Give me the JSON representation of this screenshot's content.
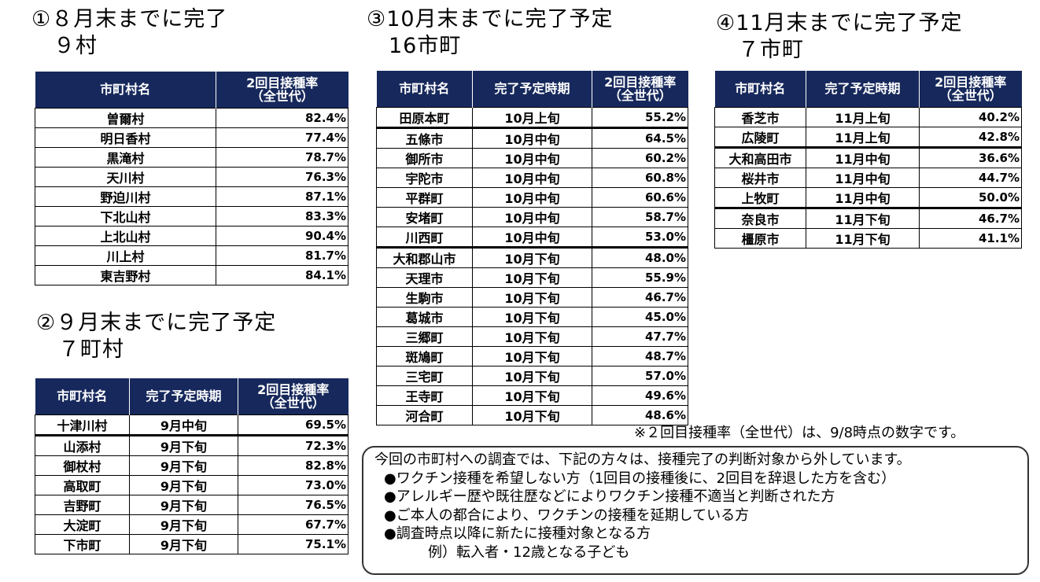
{
  "s1": {
    "title": "①８月末までに完了",
    "sub": "９村",
    "headers": [
      "市町村名",
      "2回目接種率\n（全世代）"
    ],
    "rows": [
      [
        "曽爾村",
        "82.4%"
      ],
      [
        "明日香村",
        "77.4%"
      ],
      [
        "黒滝村",
        "78.7%"
      ],
      [
        "天川村",
        "76.3%"
      ],
      [
        "野迫川村",
        "87.1%"
      ],
      [
        "下北山村",
        "83.3%"
      ],
      [
        "上北山村",
        "90.4%"
      ],
      [
        "川上村",
        "81.7%"
      ],
      [
        "東吉野村",
        "84.1%"
      ]
    ]
  },
  "s2": {
    "title": "②９月末までに完了予定",
    "sub": "７町村",
    "headers": [
      "市町村名",
      "完了予定時期",
      "2回目接種率\n（全世代）"
    ],
    "rows": [
      [
        "十津川村",
        "9月中旬",
        "69.5%"
      ],
      [
        "山添村",
        "9月下旬",
        "72.3%"
      ],
      [
        "御杖村",
        "9月下旬",
        "82.8%"
      ],
      [
        "高取町",
        "9月下旬",
        "73.0%"
      ],
      [
        "吉野町",
        "9月下旬",
        "76.5%"
      ],
      [
        "大淀町",
        "9月下旬",
        "67.7%"
      ],
      [
        "下市町",
        "9月下旬",
        "75.1%"
      ]
    ],
    "thick_before": [
      1
    ]
  },
  "s3": {
    "title": "③10月末までに完了予定",
    "sub": "16市町",
    "headers": [
      "市町村名",
      "完了予定時期",
      "2回目接種率\n（全世代）"
    ],
    "rows": [
      [
        "田原本町",
        "10月上旬",
        "55.2%"
      ],
      [
        "五條市",
        "10月中旬",
        "64.5%"
      ],
      [
        "御所市",
        "10月中旬",
        "60.2%"
      ],
      [
        "宇陀市",
        "10月中旬",
        "60.8%"
      ],
      [
        "平群町",
        "10月中旬",
        "60.6%"
      ],
      [
        "安堵町",
        "10月中旬",
        "58.7%"
      ],
      [
        "川西町",
        "10月中旬",
        "53.0%"
      ],
      [
        "大和郡山市",
        "10月下旬",
        "48.0%"
      ],
      [
        "天理市",
        "10月下旬",
        "55.9%"
      ],
      [
        "生駒市",
        "10月下旬",
        "46.7%"
      ],
      [
        "葛城市",
        "10月下旬",
        "45.0%"
      ],
      [
        "三郷町",
        "10月下旬",
        "47.7%"
      ],
      [
        "斑鳩町",
        "10月下旬",
        "48.7%"
      ],
      [
        "三宅町",
        "10月下旬",
        "57.0%"
      ],
      [
        "王寺町",
        "10月下旬",
        "49.6%"
      ],
      [
        "河合町",
        "10月下旬",
        "48.6%"
      ]
    ],
    "thick_before": [
      1,
      7
    ]
  },
  "s4": {
    "title": "④11月末までに完了予定",
    "sub": "７市町",
    "headers": [
      "市町村名",
      "完了予定時期",
      "2回目接種率\n（全世代）"
    ],
    "rows": [
      [
        "香芝市",
        "11月上旬",
        "40.2%"
      ],
      [
        "広陵町",
        "11月上旬",
        "42.8%"
      ],
      [
        "大和高田市",
        "11月中旬",
        "36.6%"
      ],
      [
        "桜井市",
        "11月中旬",
        "44.7%"
      ],
      [
        "上牧町",
        "11月中旬",
        "50.0%"
      ],
      [
        "奈良市",
        "11月下旬",
        "46.7%"
      ],
      [
        "橿原市",
        "11月下旬",
        "41.1%"
      ]
    ],
    "thick_before": [
      2,
      5
    ]
  },
  "note": "※２回目接種率（全世代）は、9/8時点の数字です。",
  "box": {
    "intro": "今回の市町村への調査では、下記の方々は、接種完了の判断対象から外しています。",
    "bullets": [
      "●ワクチン接種を希望しない方（1回目の接種後に、2回目を辞退した方を含む）",
      "●アレルギー歴や既往歴などによりワクチン接種不適当と判断された方",
      "●ご本人の都合により、ワクチンの接種を延期している方",
      "●調査時点以降に新たに接種対象となる方"
    ],
    "example": "例）転入者・12歳となる子ども"
  }
}
